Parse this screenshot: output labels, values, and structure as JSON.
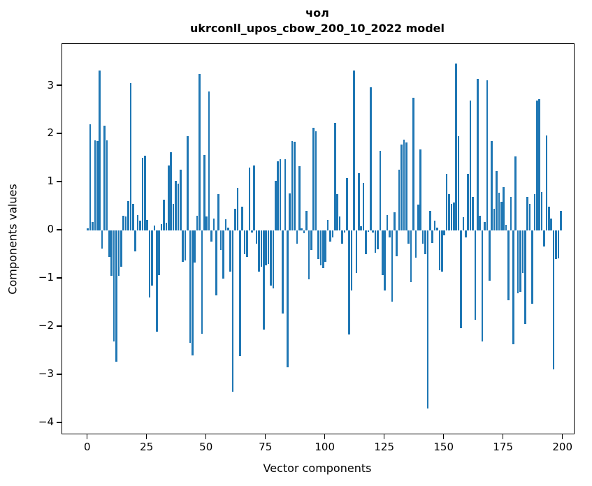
{
  "figure": {
    "title_line1": "чол",
    "title_line2": "ukrconll_upos_cbow_200_10_2022 model",
    "background": "#ffffff",
    "bar_color": "#1f77b4",
    "axis_color": "#000000"
  },
  "chart_data": {
    "type": "bar",
    "title": "чол",
    "subtitle": "ukrconll_upos_cbow_200_10_2022 model",
    "xlabel": "Vector components",
    "ylabel": "Components values",
    "x_ticks": [
      0,
      25,
      50,
      75,
      100,
      125,
      150,
      175,
      200
    ],
    "y_ticks": [
      3,
      2,
      1,
      0,
      -1,
      -2,
      -3,
      -4
    ],
    "xlim": [
      -10.8,
      204.5
    ],
    "ylim": [
      -4.22,
      3.87
    ],
    "grid": false,
    "legend": null,
    "n_components": 200,
    "bar_rel_width": 0.8,
    "values": [
      0.04,
      2.2,
      0.18,
      1.87,
      1.86,
      3.32,
      -0.38,
      2.18,
      1.87,
      -0.55,
      -0.95,
      -2.3,
      -2.72,
      -0.95,
      -0.75,
      0.3,
      0.29,
      0.61,
      3.06,
      0.55,
      -0.43,
      0.32,
      0.2,
      1.5,
      1.55,
      0.22,
      -1.4,
      -1.15,
      0.1,
      -2.1,
      -0.93,
      0.13,
      0.63,
      0.16,
      1.35,
      1.62,
      0.55,
      1.03,
      0.97,
      1.26,
      -0.65,
      -0.62,
      1.95,
      -2.33,
      -2.6,
      -0.67,
      0.3,
      3.25,
      -2.15,
      1.57,
      0.29,
      2.88,
      -0.23,
      0.24,
      -1.35,
      0.76,
      -0.4,
      -1.0,
      0.23,
      0.05,
      -0.85,
      -3.35,
      0.45,
      0.88,
      -2.61,
      0.49,
      -0.5,
      -0.55,
      1.3,
      -0.04,
      1.35,
      -0.28,
      -0.85,
      -0.75,
      -2.06,
      -0.73,
      -0.7,
      -1.14,
      -1.2,
      1.03,
      1.44,
      1.48,
      -1.72,
      1.48,
      -2.84,
      0.77,
      1.86,
      1.84,
      -0.28,
      1.34,
      0.04,
      -0.06,
      0.4,
      -1.01,
      -0.41,
      2.13,
      2.06,
      -0.6,
      -0.72,
      -0.78,
      -0.65,
      0.21,
      -0.23,
      -0.15,
      2.23,
      0.75,
      0.29,
      -0.28,
      -0.05,
      1.08,
      -2.16,
      -1.25,
      3.32,
      -0.88,
      1.19,
      0.09,
      0.98,
      -0.49,
      -0.03,
      2.97,
      -0.05,
      -0.46,
      -0.39,
      1.65,
      -0.93,
      -1.25,
      0.32,
      -0.15,
      -1.48,
      0.38,
      -0.54,
      1.26,
      1.78,
      1.89,
      1.82,
      -0.28,
      -1.07,
      2.75,
      -0.57,
      0.53,
      1.68,
      -0.28,
      -0.5,
      -3.7,
      0.4,
      -0.26,
      0.2,
      0.05,
      -0.83,
      -0.86,
      -0.1,
      1.18,
      0.75,
      0.55,
      0.58,
      3.46,
      1.95,
      -2.03,
      0.28,
      -0.15,
      1.17,
      2.69,
      0.7,
      -1.85,
      3.15,
      0.3,
      -2.3,
      0.18,
      3.11,
      -1.05,
      1.86,
      0.45,
      1.23,
      0.78,
      0.6,
      0.9,
      0.12,
      -1.45,
      0.69,
      -2.37,
      1.53,
      -1.3,
      -1.28,
      -0.88,
      -1.95,
      0.69,
      0.55,
      -1.53,
      0.76,
      2.7,
      2.72,
      0.8,
      -0.33,
      1.97,
      0.49,
      0.24,
      -2.89,
      -0.6,
      -0.58,
      0.41
    ]
  }
}
